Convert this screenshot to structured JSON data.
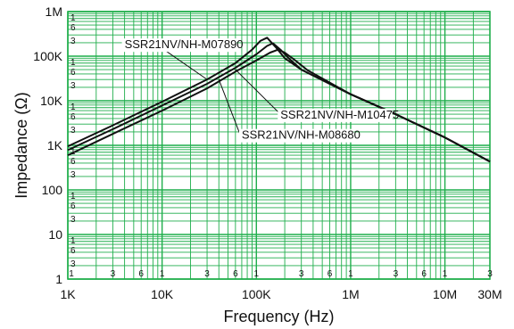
{
  "chart_data": {
    "type": "line",
    "xscale": "log",
    "yscale": "log",
    "xlim": [
      1000,
      30000000
    ],
    "ylim": [
      1,
      1000000
    ],
    "xlabel": "Frequency (Hz)",
    "ylabel": "Impedance (Ω)",
    "grid": true,
    "colors": {
      "grid": "#1fae4b",
      "series": "#111111",
      "background": "#ffffff"
    },
    "x_ticks": [
      {
        "value": 1000,
        "label": "1K"
      },
      {
        "value": 10000,
        "label": "10K"
      },
      {
        "value": 100000,
        "label": "100K"
      },
      {
        "value": 1000000,
        "label": "1M"
      },
      {
        "value": 10000000,
        "label": "10M"
      },
      {
        "value": 30000000,
        "label": "30M"
      }
    ],
    "x_minor_ticks": [
      {
        "value": 1000,
        "label": "1"
      },
      {
        "value": 3000,
        "label": "3"
      },
      {
        "value": 6000,
        "label": "6"
      },
      {
        "value": 10000,
        "label": "1"
      },
      {
        "value": 30000,
        "label": "3"
      },
      {
        "value": 60000,
        "label": "6"
      },
      {
        "value": 100000,
        "label": "1"
      },
      {
        "value": 300000,
        "label": "3"
      },
      {
        "value": 600000,
        "label": "6"
      },
      {
        "value": 1000000,
        "label": "1"
      },
      {
        "value": 3000000,
        "label": "3"
      },
      {
        "value": 6000000,
        "label": "6"
      },
      {
        "value": 10000000,
        "label": "1"
      },
      {
        "value": 30000000,
        "label": "3"
      }
    ],
    "y_ticks": [
      {
        "value": 1,
        "label": "1"
      },
      {
        "value": 10,
        "label": "10"
      },
      {
        "value": 100,
        "label": "100"
      },
      {
        "value": 1000,
        "label": "1K"
      },
      {
        "value": 10000,
        "label": "10K"
      },
      {
        "value": 100000,
        "label": "100K"
      },
      {
        "value": 1000000,
        "label": "1M"
      }
    ],
    "y_minor_ticks": [
      {
        "value": 3,
        "label": "3"
      },
      {
        "value": 6,
        "label": "6"
      },
      {
        "value": 10,
        "label": "1"
      },
      {
        "value": 30,
        "label": "3"
      },
      {
        "value": 60,
        "label": "6"
      },
      {
        "value": 100,
        "label": "1"
      },
      {
        "value": 300,
        "label": "3"
      },
      {
        "value": 600,
        "label": "6"
      },
      {
        "value": 1000,
        "label": "1"
      },
      {
        "value": 3000,
        "label": "3"
      },
      {
        "value": 6000,
        "label": "6"
      },
      {
        "value": 10000,
        "label": "1"
      },
      {
        "value": 30000,
        "label": "3"
      },
      {
        "value": 60000,
        "label": "6"
      },
      {
        "value": 100000,
        "label": "1"
      },
      {
        "value": 300000,
        "label": "3"
      },
      {
        "value": 600000,
        "label": "6"
      },
      {
        "value": 1000000,
        "label": "1"
      }
    ],
    "series": [
      {
        "name": "SSR21NV/NH-M07890",
        "x": [
          1000,
          3000,
          10000,
          30000,
          60000,
          90000,
          110000,
          130000,
          160000,
          200000,
          300000,
          1000000,
          3000000,
          10000000,
          30000000
        ],
        "y": [
          950,
          2800,
          9500,
          30000,
          70000,
          140000,
          220000,
          260000,
          160000,
          90000,
          50000,
          14000,
          5000,
          1500,
          430
        ]
      },
      {
        "name": "SSR21NV/NH-M10475",
        "x": [
          1000,
          3000,
          10000,
          30000,
          60000,
          100000,
          130000,
          150000,
          180000,
          220000,
          300000,
          1000000,
          3000000,
          10000000,
          30000000
        ],
        "y": [
          780,
          2300,
          7800,
          24000,
          55000,
          110000,
          170000,
          195000,
          140000,
          90000,
          50000,
          14000,
          5000,
          1500,
          430
        ]
      },
      {
        "name": "SSR21NV/NH-M08680",
        "x": [
          1000,
          3000,
          10000,
          30000,
          60000,
          100000,
          140000,
          170000,
          200000,
          250000,
          350000,
          1000000,
          3000000,
          10000000,
          30000000
        ],
        "y": [
          600,
          1800,
          6000,
          19000,
          45000,
          80000,
          120000,
          140000,
          120000,
          85000,
          48000,
          14000,
          5000,
          1500,
          430
        ]
      }
    ],
    "annotations": [
      {
        "text": "SSR21NV/NH-M07890",
        "x": 4000,
        "y": 150000,
        "anchor": "start",
        "pointer": [
          [
            10000,
            150000
          ],
          [
            30000,
            30000
          ]
        ]
      },
      {
        "text": "SSR21NV/NH-M10475",
        "x": 180000,
        "y": 4000,
        "anchor": "start",
        "pointer": [
          [
            200000,
            4000
          ],
          [
            60000,
            50000
          ]
        ]
      },
      {
        "text": "SSR21NV/NH-M08680",
        "x": 70000,
        "y": 1400,
        "anchor": "start",
        "pointer": [
          [
            70000,
            1400
          ],
          [
            40000,
            30000
          ]
        ]
      }
    ]
  }
}
